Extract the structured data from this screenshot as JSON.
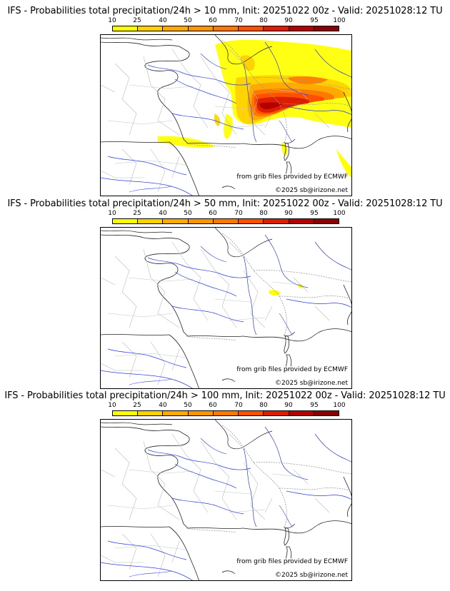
{
  "legend": {
    "ticks": [
      "10",
      "25",
      "40",
      "50",
      "60",
      "70",
      "80",
      "90",
      "95",
      "100"
    ],
    "colors": [
      "#ffff00",
      "#ffd200",
      "#ffaa00",
      "#ff9600",
      "#ff7800",
      "#ff5000",
      "#dc1e00",
      "#b40000",
      "#8c0000",
      "#5a0000"
    ]
  },
  "panels": [
    {
      "title": "IFS - Probabilities total precipitation/24h > 10 mm, Init: 20251022 00z - Valid: 20251028:12 TU",
      "source_credit": "from grib files provided by ECMWF",
      "copyright": "©2025 sb@irizone.net",
      "precip_level": "high"
    },
    {
      "title": "IFS - Probabilities total precipitation/24h > 50 mm, Init: 20251022 00z - Valid: 20251028:12 TU",
      "source_credit": "from grib files provided by ECMWF",
      "copyright": "©2025 sb@irizone.net",
      "precip_level": "low"
    },
    {
      "title": "IFS - Probabilities total precipitation/24h > 100 mm, Init: 20251022 00z - Valid: 20251028:12 TU",
      "source_credit": "from grib files provided by ECMWF",
      "copyright": "©2025 sb@irizone.net",
      "precip_level": "none"
    }
  ]
}
